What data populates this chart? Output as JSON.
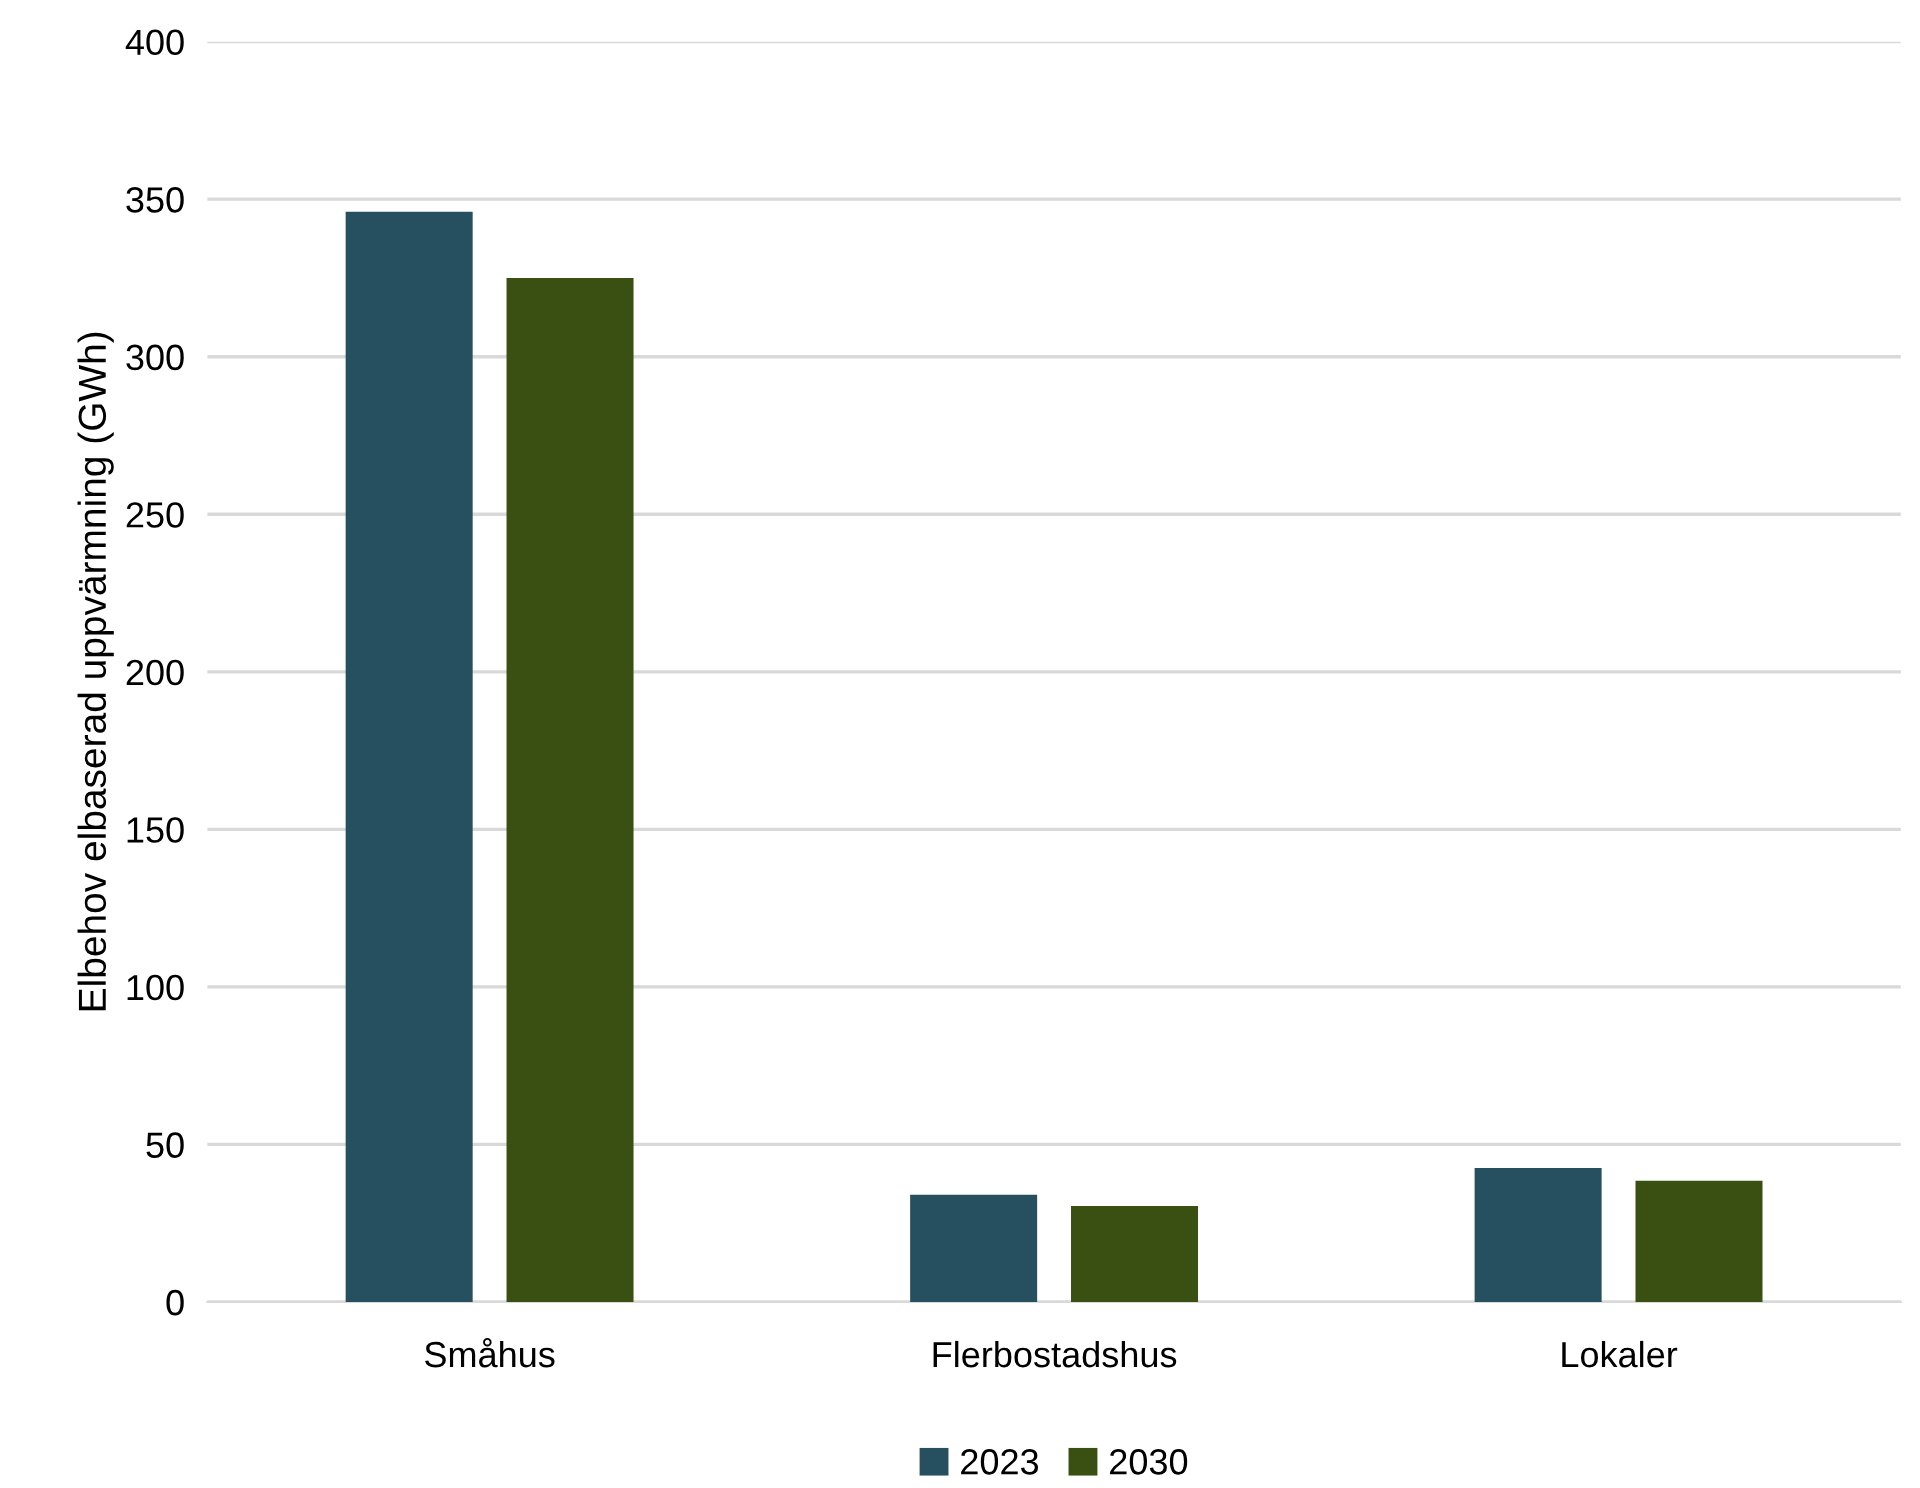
{
  "chart_data": {
    "type": "bar",
    "ylabel": "Elbehov elbaserad uppvärmning (GWh)",
    "categories": [
      "Småhus",
      "Flerbostadshus",
      "Lokaler"
    ],
    "series": [
      {
        "name": "2023",
        "color": "#264f5f",
        "values": [
          346,
          34,
          42.5
        ]
      },
      {
        "name": "2030",
        "color": "#3a5012",
        "values": [
          325,
          30.5,
          38.5
        ]
      }
    ],
    "ylim": [
      0,
      400
    ],
    "yticks": [
      0,
      50,
      100,
      150,
      200,
      250,
      300,
      350,
      400
    ],
    "grid": "y",
    "legend": "bottom"
  }
}
